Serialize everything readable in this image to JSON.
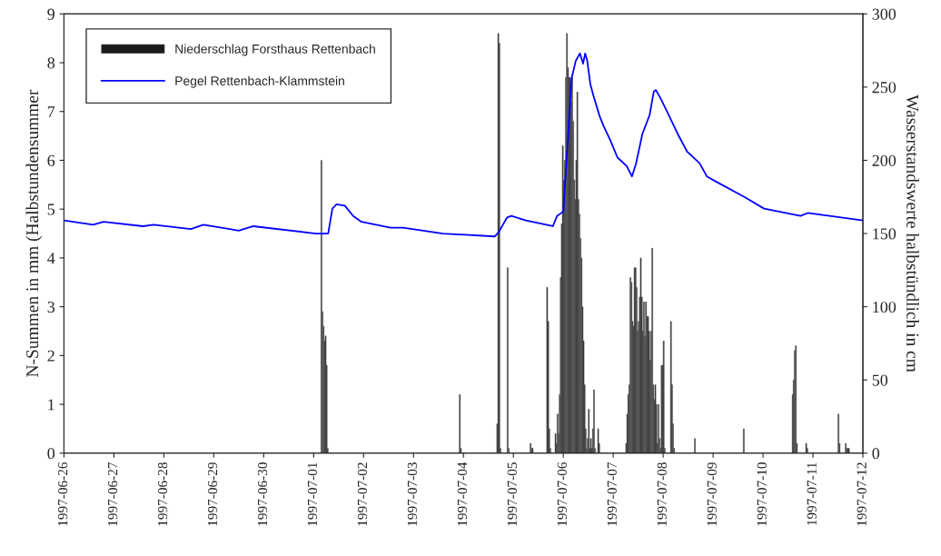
{
  "chart_data": {
    "type": "bar",
    "ylabel": "N-Summen in mm (Halbstundensummer",
    "y2label": "Wasserstandswerte halbstündlich in cm",
    "xlim": [
      "1997-06-26",
      "1997-07-12"
    ],
    "xticks": [
      "1997-06-26",
      "1997-06-27",
      "1997-06-28",
      "1997-06-29",
      "1997-06-30",
      "1997-07-01",
      "1997-07-02",
      "1997-07-03",
      "1997-07-04",
      "1997-07-05",
      "1997-07-06",
      "1997-07-07",
      "1997-07-08",
      "1997-07-09",
      "1997-07-10",
      "1997-07-11",
      "1997-07-12"
    ],
    "ylim": [
      0,
      9
    ],
    "yticks": [
      0,
      1,
      2,
      3,
      4,
      5,
      6,
      7,
      8,
      9
    ],
    "y2lim": [
      0,
      300
    ],
    "y2ticks": [
      0,
      50,
      100,
      150,
      200,
      250,
      300
    ],
    "grid": false,
    "legend": "top left",
    "series": [
      {
        "name": "Niederschlag Forsthaus Rettenbach",
        "color": "#1a1a1a",
        "x": [
          "1997-07-01T03:30",
          "1997-07-01T04:00",
          "1997-07-01T04:30",
          "1997-07-01T05:00",
          "1997-07-01T05:30",
          "1997-07-01T06:00",
          "1997-07-01T06:30",
          "1997-07-03T22:00",
          "1997-07-03T22:30",
          "1997-07-04T16:00",
          "1997-07-04T16:30",
          "1997-07-04T17:00",
          "1997-07-04T17:30",
          "1997-07-04T21:00",
          "1997-07-04T21:30",
          "1997-07-05T08:00",
          "1997-07-05T08:30",
          "1997-07-05T09:00",
          "1997-07-05T16:00",
          "1997-07-05T16:30",
          "1997-07-05T17:00",
          "1997-07-05T17:30",
          "1997-07-05T20:00",
          "1997-07-05T20:30",
          "1997-07-05T21:00",
          "1997-07-05T21:30",
          "1997-07-05T22:00",
          "1997-07-05T22:30",
          "1997-07-05T23:00",
          "1997-07-05T23:30",
          "1997-07-06T00:00",
          "1997-07-06T00:30",
          "1997-07-06T01:00",
          "1997-07-06T01:30",
          "1997-07-06T02:00",
          "1997-07-06T02:30",
          "1997-07-06T03:00",
          "1997-07-06T03:30",
          "1997-07-06T04:00",
          "1997-07-06T04:30",
          "1997-07-06T05:00",
          "1997-07-06T05:30",
          "1997-07-06T06:00",
          "1997-07-06T06:30",
          "1997-07-06T07:00",
          "1997-07-06T07:30",
          "1997-07-06T08:00",
          "1997-07-06T08:30",
          "1997-07-06T09:00",
          "1997-07-06T09:30",
          "1997-07-06T10:00",
          "1997-07-06T10:30",
          "1997-07-06T11:00",
          "1997-07-06T11:30",
          "1997-07-06T12:00",
          "1997-07-06T12:30",
          "1997-07-06T13:00",
          "1997-07-06T13:30",
          "1997-07-06T14:00",
          "1997-07-06T14:30",
          "1997-07-06T15:00",
          "1997-07-06T16:30",
          "1997-07-06T17:00",
          "1997-07-07T06:00",
          "1997-07-07T06:30",
          "1997-07-07T07:00",
          "1997-07-07T07:30",
          "1997-07-07T08:00",
          "1997-07-07T08:30",
          "1997-07-07T09:00",
          "1997-07-07T09:30",
          "1997-07-07T10:00",
          "1997-07-07T10:30",
          "1997-07-07T11:00",
          "1997-07-07T11:30",
          "1997-07-07T12:00",
          "1997-07-07T12:30",
          "1997-07-07T13:00",
          "1997-07-07T13:30",
          "1997-07-07T14:00",
          "1997-07-07T14:30",
          "1997-07-07T15:00",
          "1997-07-07T15:30",
          "1997-07-07T16:00",
          "1997-07-07T16:30",
          "1997-07-07T17:00",
          "1997-07-07T17:30",
          "1997-07-07T18:00",
          "1997-07-07T18:30",
          "1997-07-07T19:00",
          "1997-07-07T19:30",
          "1997-07-07T20:00",
          "1997-07-07T20:30",
          "1997-07-07T21:00",
          "1997-07-07T21:30",
          "1997-07-07T22:00",
          "1997-07-07T22:30",
          "1997-07-07T23:00",
          "1997-07-07T23:30",
          "1997-07-08T00:00",
          "1997-07-08T00:30",
          "1997-07-08T03:30",
          "1997-07-08T04:00",
          "1997-07-08T04:30",
          "1997-07-08T05:00",
          "1997-07-08T15:00",
          "1997-07-09T14:30",
          "1997-07-10T14:00",
          "1997-07-10T14:30",
          "1997-07-10T15:00",
          "1997-07-10T15:30",
          "1997-07-10T16:00",
          "1997-07-10T20:30",
          "1997-07-10T21:00",
          "1997-07-11T12:00",
          "1997-07-11T12:30",
          "1997-07-11T15:30",
          "1997-07-11T16:00",
          "1997-07-11T16:30",
          "1997-07-11T17:00"
        ],
        "values": [
          6.0,
          2.9,
          2.6,
          2.3,
          2.4,
          1.8,
          0.1,
          1.2,
          0.1,
          0.6,
          8.6,
          8.4,
          0.1,
          3.8,
          0.1,
          0.2,
          0.1,
          0.1,
          3.4,
          2.7,
          0.5,
          0.1,
          0.4,
          0.2,
          0.8,
          0.4,
          1.2,
          3.6,
          4.7,
          6.3,
          5.6,
          6.0,
          7.7,
          8.6,
          7.9,
          7.7,
          7.7,
          7.2,
          7.7,
          6.8,
          5.6,
          5.2,
          6.0,
          7.4,
          5.2,
          4.9,
          4.4,
          4.0,
          3.0,
          2.3,
          1.4,
          0.5,
          0.1,
          0.3,
          0.9,
          0.1,
          0.3,
          0.1,
          0.5,
          1.3,
          0.1,
          0.5,
          0.2,
          0.2,
          0.8,
          1.2,
          1.4,
          3.6,
          3.5,
          2.7,
          2.6,
          3.8,
          3.8,
          3.4,
          2.5,
          2.7,
          3.2,
          4.0,
          3.2,
          2.5,
          3.1,
          2.4,
          3.1,
          2.8,
          2.8,
          2.5,
          1.9,
          2.5,
          4.2,
          1.4,
          1.1,
          1.4,
          1.0,
          0.2,
          1.0,
          0.3,
          0.1,
          1.8,
          1.8,
          2.3,
          0.1,
          2.7,
          1.4,
          0.6,
          0.1,
          0.3,
          0.5,
          1.2,
          1.5,
          2.1,
          2.2,
          0.2,
          0.2,
          0.1,
          0.8,
          0.2,
          0.2,
          0.1,
          0.1,
          0.1
        ]
      },
      {
        "name": "Pegel Rettenbach-Klammstein",
        "type": "line",
        "axis": "y2",
        "color": "#0000ff",
        "x": [
          "1997-06-26T00:00",
          "1997-06-26T14:00",
          "1997-06-26T19:00",
          "1997-06-27T14:00",
          "1997-06-27T19:00",
          "1997-06-28T13:00",
          "1997-06-28T19:00",
          "1997-06-29T12:00",
          "1997-06-29T19:00",
          "1997-07-01T01:00",
          "1997-07-01T07:00",
          "1997-07-01T09:00",
          "1997-07-01T11:00",
          "1997-07-01T15:00",
          "1997-07-01T19:00",
          "1997-07-01T23:00",
          "1997-07-02T13:00",
          "1997-07-02T19:00",
          "1997-07-03T14:00",
          "1997-07-04T15:00",
          "1997-07-04T17:00",
          "1997-07-04T21:00",
          "1997-07-04T23:00",
          "1997-07-05T06:00",
          "1997-07-05T19:00",
          "1997-07-05T21:00",
          "1997-07-06T00:00",
          "1997-07-06T02:00",
          "1997-07-06T04:00",
          "1997-07-06T06:00",
          "1997-07-06T08:00",
          "1997-07-06T09:30",
          "1997-07-06T10:30",
          "1997-07-06T11:30",
          "1997-07-06T13:00",
          "1997-07-06T14:30",
          "1997-07-06T17:30",
          "1997-07-06T19:30",
          "1997-07-06T22:30",
          "1997-07-07T02:00",
          "1997-07-07T06:30",
          "1997-07-07T09:00",
          "1997-07-07T11:00",
          "1997-07-07T14:00",
          "1997-07-07T17:30",
          "1997-07-07T19:30",
          "1997-07-07T20:30",
          "1997-07-07T22:30",
          "1997-07-08T02:00",
          "1997-07-08T07:00",
          "1997-07-08T11:30",
          "1997-07-08T17:30",
          "1997-07-08T21:00",
          "1997-07-09T02:00",
          "1997-07-09T15:00",
          "1997-07-10T00:30",
          "1997-07-10T18:00",
          "1997-07-10T21:30",
          "1997-07-12T00:00"
        ],
        "values": [
          159,
          156,
          158,
          155,
          156,
          153,
          156,
          152,
          155,
          150,
          150,
          167,
          170,
          169,
          162,
          158,
          154,
          154,
          150,
          148,
          151,
          161,
          162,
          159,
          155,
          162,
          165,
          210,
          256,
          268,
          273,
          266,
          273,
          268,
          252,
          244,
          230,
          223,
          214,
          202,
          196,
          189,
          198,
          218,
          231,
          247,
          248,
          243,
          233,
          218,
          206,
          198,
          189,
          185,
          175,
          167,
          162,
          164,
          159
        ]
      }
    ]
  }
}
